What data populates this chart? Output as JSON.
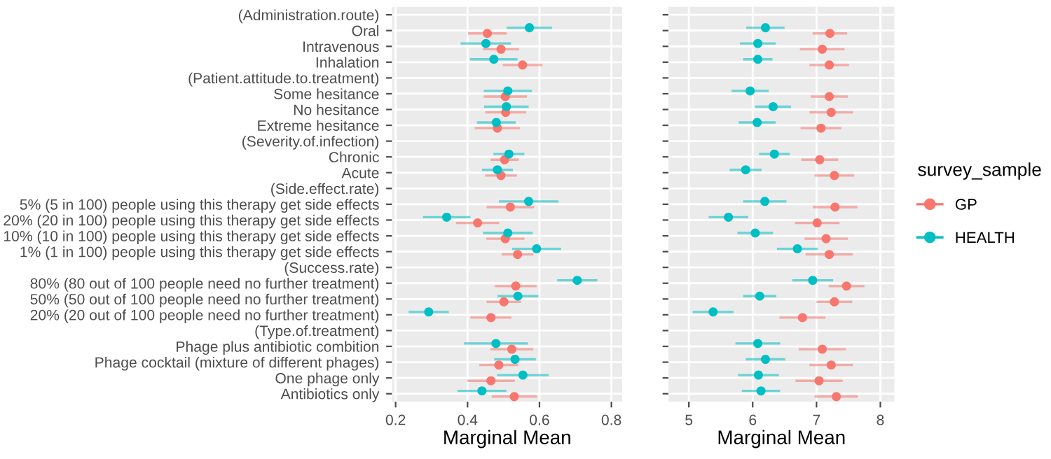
{
  "chart_data": [
    {
      "type": "scatter",
      "orientation": "horizontal",
      "xlabel": "Marginal Mean",
      "marker": "circle",
      "grid": true,
      "categories": [
        "(Administration.route)",
        "Oral",
        "Intravenous",
        "Inhalation",
        "(Patient.attitude.to.treatment)",
        "Some hesitance",
        "No hesitance",
        "Extreme hesitance",
        "(Severity.of.infection)",
        "Chronic",
        "Acute",
        "(Side.effect.rate)",
        "5% (5 in 100) people using this therapy get side effects",
        "20% (20 in 100) people using this therapy get side effects",
        "10% (10 in 100) people using this therapy get side effects",
        "1% (1 in 100) people using this therapy get side effects",
        "(Success.rate)",
        "80% (80 out of 100 people need no further treatment)",
        "50% (50 out of 100 people need no further treatment)",
        "20% (20 out of 100 people need no further treatment)",
        "(Type.of.treatment)",
        "Phage plus antibiotic combition",
        "Phage cocktail (mixture of different phages)",
        "One phage only",
        "Antibiotics only"
      ],
      "xlim": [
        0.19,
        0.83
      ],
      "xticks": [
        0.2,
        0.4,
        0.6,
        0.8
      ],
      "series": [
        {
          "color": "#f8766d",
          "values": [
            null,
            0.455,
            0.493,
            0.553,
            null,
            0.505,
            0.506,
            0.483,
            null,
            0.503,
            0.493,
            null,
            0.519,
            0.428,
            0.505,
            0.539,
            null,
            0.534,
            0.501,
            0.465,
            null,
            0.523,
            0.487,
            0.465,
            0.53
          ],
          "errors": [
            null,
            0.054,
            0.05,
            0.055,
            null,
            0.06,
            0.057,
            0.063,
            null,
            0.039,
            0.044,
            null,
            0.066,
            0.06,
            0.053,
            0.044,
            null,
            0.058,
            0.048,
            0.057,
            null,
            0.06,
            0.054,
            0.066,
            0.063
          ]
        },
        {
          "color": "#00bfc4",
          "values": [
            null,
            0.572,
            0.451,
            0.473,
            null,
            0.512,
            0.508,
            0.48,
            null,
            0.515,
            0.483,
            null,
            0.57,
            0.342,
            0.512,
            0.592,
            null,
            0.705,
            0.54,
            0.292,
            null,
            0.479,
            0.532,
            0.554,
            0.44
          ],
          "errors": [
            null,
            0.063,
            0.07,
            0.066,
            null,
            0.067,
            0.062,
            0.054,
            null,
            0.043,
            0.043,
            null,
            0.083,
            0.066,
            0.069,
            0.068,
            null,
            0.056,
            0.057,
            0.056,
            null,
            0.089,
            0.058,
            0.072,
            0.068
          ]
        }
      ]
    },
    {
      "type": "scatter",
      "orientation": "horizontal",
      "xlabel": "Marginal Mean",
      "marker": "circle",
      "grid": true,
      "tick_labels": "x",
      "legend": "right",
      "legend_title": "survey_sample",
      "categories": [
        null,
        null,
        null,
        null,
        null,
        null,
        null,
        null,
        null,
        null,
        null,
        null,
        null,
        null,
        null,
        null,
        null,
        null,
        null,
        null,
        null,
        null,
        null,
        null,
        null
      ],
      "xlim": [
        4.68,
        8.22
      ],
      "xticks": [
        5,
        6,
        7,
        8
      ],
      "series": [
        {
          "name": "GP",
          "color": "#f8766d",
          "values": [
            null,
            7.21,
            7.09,
            7.2,
            null,
            7.2,
            7.23,
            7.07,
            null,
            7.05,
            7.28,
            null,
            7.29,
            7.01,
            7.15,
            7.2,
            null,
            7.47,
            7.28,
            6.78,
            null,
            7.09,
            7.23,
            7.04,
            7.31
          ],
          "errors": [
            null,
            0.27,
            0.35,
            0.31,
            null,
            0.29,
            0.34,
            0.32,
            null,
            0.29,
            0.31,
            null,
            0.35,
            0.35,
            0.34,
            0.37,
            null,
            0.28,
            0.28,
            0.36,
            null,
            0.37,
            0.34,
            0.37,
            0.34
          ]
        },
        {
          "name": "HEALTH",
          "color": "#00bfc4",
          "values": [
            null,
            6.2,
            6.08,
            6.08,
            null,
            5.96,
            6.32,
            6.07,
            null,
            6.34,
            5.89,
            null,
            6.19,
            5.62,
            6.04,
            6.7,
            null,
            6.94,
            6.11,
            5.38,
            null,
            6.08,
            6.2,
            6.09,
            6.13
          ],
          "errors": [
            null,
            0.3,
            0.28,
            0.23,
            null,
            0.29,
            0.28,
            0.29,
            null,
            0.24,
            0.25,
            null,
            0.34,
            0.31,
            0.28,
            0.32,
            null,
            0.32,
            0.26,
            0.32,
            null,
            0.35,
            0.31,
            0.32,
            0.3
          ]
        }
      ]
    }
  ]
}
